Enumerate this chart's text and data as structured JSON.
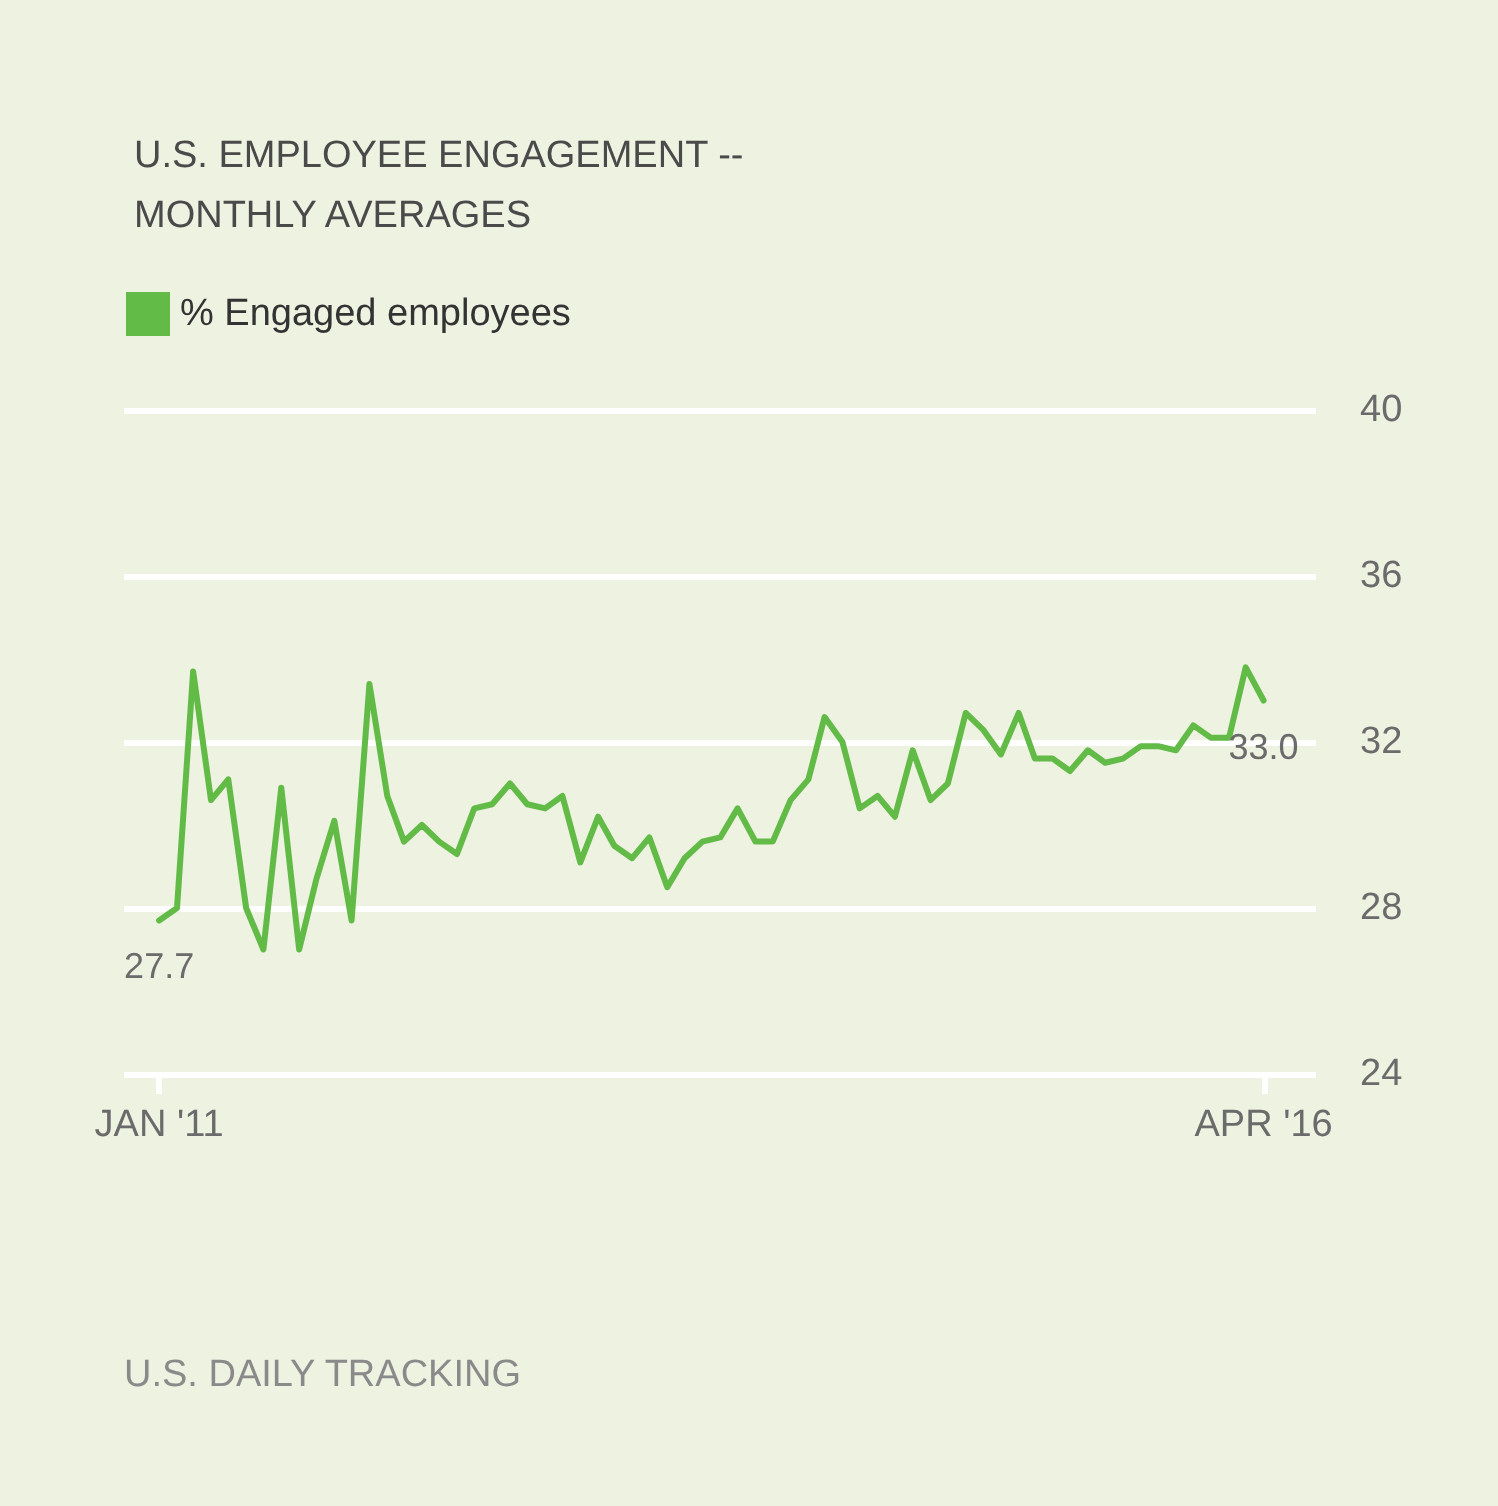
{
  "chart_data": {
    "type": "line",
    "title": "U.S. EMPLOYEE ENGAGEMENT --\nMONTHLY AVERAGES",
    "x": [
      "2011-01",
      "2011-02",
      "2011-03",
      "2011-04",
      "2011-05",
      "2011-06",
      "2011-07",
      "2011-08",
      "2011-09",
      "2011-10",
      "2011-11",
      "2011-12",
      "2012-01",
      "2012-02",
      "2012-03",
      "2012-04",
      "2012-05",
      "2012-06",
      "2012-07",
      "2012-08",
      "2012-09",
      "2012-10",
      "2012-11",
      "2012-12",
      "2013-01",
      "2013-02",
      "2013-03",
      "2013-04",
      "2013-05",
      "2013-06",
      "2013-07",
      "2013-08",
      "2013-09",
      "2013-10",
      "2013-11",
      "2013-12",
      "2014-01",
      "2014-02",
      "2014-03",
      "2014-04",
      "2014-05",
      "2014-06",
      "2014-07",
      "2014-08",
      "2014-09",
      "2014-10",
      "2014-11",
      "2014-12",
      "2015-01",
      "2015-02",
      "2015-03",
      "2015-04",
      "2015-05",
      "2015-06",
      "2015-07",
      "2015-08",
      "2015-09",
      "2015-10",
      "2015-11",
      "2015-12",
      "2016-01",
      "2016-02",
      "2016-03",
      "2016-04"
    ],
    "series": [
      {
        "name": "% Engaged employees",
        "color": "#62bb46",
        "values": [
          27.7,
          28.0,
          33.7,
          30.6,
          31.1,
          28.0,
          27.0,
          30.9,
          27.0,
          28.7,
          30.1,
          27.7,
          33.4,
          30.7,
          29.6,
          30.0,
          29.6,
          29.3,
          30.4,
          30.5,
          31.0,
          30.5,
          30.4,
          30.7,
          29.1,
          30.2,
          29.5,
          29.2,
          29.7,
          28.5,
          29.2,
          29.6,
          29.7,
          30.4,
          29.6,
          29.6,
          30.6,
          31.1,
          32.6,
          32.0,
          30.4,
          30.7,
          30.2,
          31.8,
          30.6,
          31.0,
          32.7,
          32.3,
          31.7,
          32.7,
          31.6,
          31.6,
          31.3,
          31.8,
          31.5,
          31.6,
          31.9,
          31.9,
          31.8,
          32.4,
          32.1,
          32.1,
          33.8,
          33.0
        ]
      }
    ],
    "xlim": [
      "2010-11",
      "2016-07"
    ],
    "xticks": [
      {
        "value": "2011-01",
        "label": "JAN '11"
      },
      {
        "value": "2016-04",
        "label": "APR '16"
      }
    ],
    "ylim": [
      24,
      40
    ],
    "yticks": [
      24,
      28,
      32,
      36,
      40
    ],
    "grid": "y",
    "legend": "top left",
    "marker": "none",
    "line_style": "solid",
    "annotations": [
      {
        "text": "27.7",
        "x": "2011-01",
        "y": 27.7
      },
      {
        "text": "33.0",
        "x": "2016-04",
        "y": 33.0
      },
      "U.S. DAILY TRACKING"
    ]
  }
}
